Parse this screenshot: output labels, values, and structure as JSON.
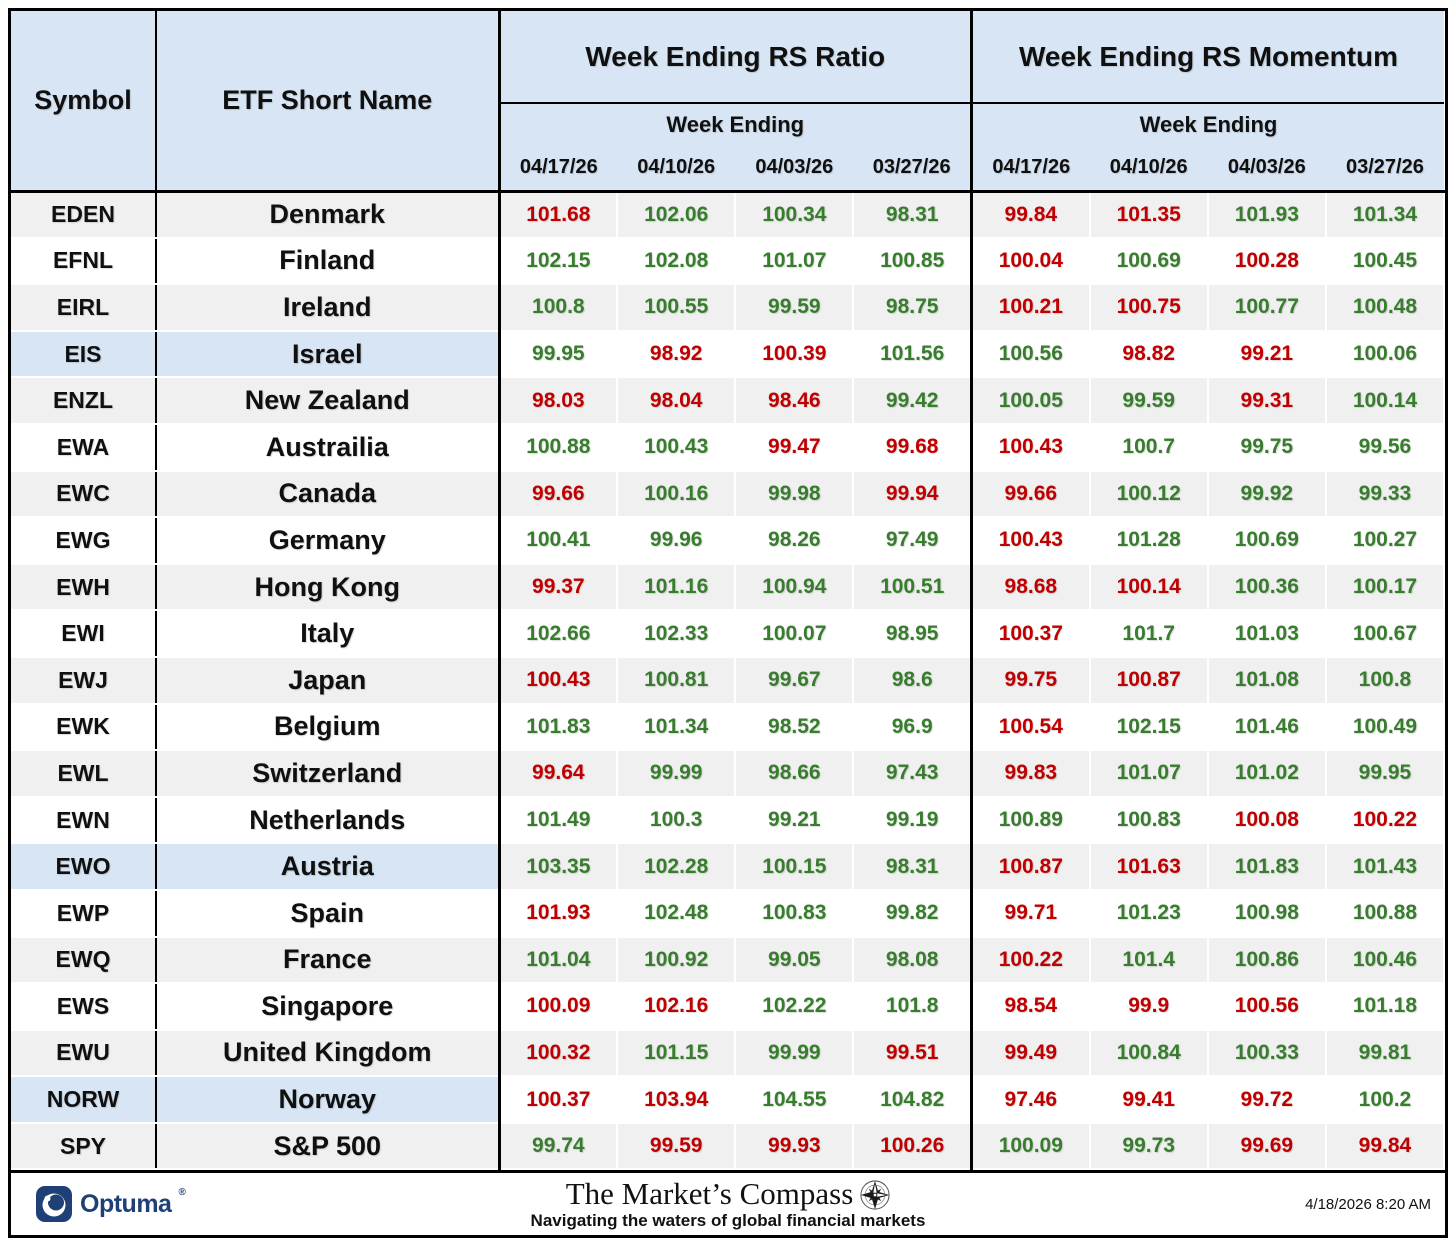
{
  "table": {
    "symbol_header": "Symbol",
    "name_header": "ETF Short Name",
    "ratio_group_header": "Week Ending RS Ratio",
    "momentum_group_header": "Week Ending RS Momentum",
    "week_ending_label": "Week Ending",
    "colors": {
      "positive_green": "#377d2d",
      "negative_red": "#c00000",
      "header_blue": "#d7e5f4",
      "stripe_gray": "#f0f0f0",
      "highlight_blue": "#d7e5f4",
      "brand_navy": "#1e4077"
    }
  },
  "chart_data": {
    "type": "table",
    "title": "Week Ending RS Ratio and RS Momentum by ETF",
    "column_groups": [
      "Week Ending RS Ratio",
      "Week Ending RS Momentum"
    ],
    "date_columns": [
      "04/17/26",
      "04/10/26",
      "04/03/26",
      "03/27/26"
    ],
    "color_legend": {
      "g": "green (improving)",
      "r": "red (weakening)"
    },
    "rows": [
      {
        "symbol": "EDEN",
        "name": "Denmark",
        "highlight": false,
        "rs_ratio": [
          101.68,
          102.06,
          100.34,
          98.31
        ],
        "rs_ratio_colors": [
          "r",
          "g",
          "g",
          "g"
        ],
        "rs_momentum": [
          99.84,
          101.35,
          101.93,
          101.34
        ],
        "rs_momentum_colors": [
          "r",
          "r",
          "g",
          "g"
        ]
      },
      {
        "symbol": "EFNL",
        "name": "Finland",
        "highlight": false,
        "rs_ratio": [
          102.15,
          102.08,
          101.07,
          100.85
        ],
        "rs_ratio_colors": [
          "g",
          "g",
          "g",
          "g"
        ],
        "rs_momentum": [
          100.04,
          100.69,
          100.28,
          100.45
        ],
        "rs_momentum_colors": [
          "r",
          "g",
          "r",
          "g"
        ]
      },
      {
        "symbol": "EIRL",
        "name": "Ireland",
        "highlight": false,
        "rs_ratio": [
          100.8,
          100.55,
          99.59,
          98.75
        ],
        "rs_ratio_colors": [
          "g",
          "g",
          "g",
          "g"
        ],
        "rs_momentum": [
          100.21,
          100.75,
          100.77,
          100.48
        ],
        "rs_momentum_colors": [
          "r",
          "r",
          "g",
          "g"
        ]
      },
      {
        "symbol": "EIS",
        "name": "Israel",
        "highlight": true,
        "rs_ratio": [
          99.95,
          98.92,
          100.39,
          101.56
        ],
        "rs_ratio_colors": [
          "g",
          "r",
          "r",
          "g"
        ],
        "rs_momentum": [
          100.56,
          98.82,
          99.21,
          100.06
        ],
        "rs_momentum_colors": [
          "g",
          "r",
          "r",
          "g"
        ]
      },
      {
        "symbol": "ENZL",
        "name": "New Zealand",
        "highlight": false,
        "rs_ratio": [
          98.03,
          98.04,
          98.46,
          99.42
        ],
        "rs_ratio_colors": [
          "r",
          "r",
          "r",
          "g"
        ],
        "rs_momentum": [
          100.05,
          99.59,
          99.31,
          100.14
        ],
        "rs_momentum_colors": [
          "g",
          "g",
          "r",
          "g"
        ]
      },
      {
        "symbol": "EWA",
        "name": "Austrailia",
        "highlight": false,
        "rs_ratio": [
          100.88,
          100.43,
          99.47,
          99.68
        ],
        "rs_ratio_colors": [
          "g",
          "g",
          "r",
          "r"
        ],
        "rs_momentum": [
          100.43,
          100.7,
          99.75,
          99.56
        ],
        "rs_momentum_colors": [
          "r",
          "g",
          "g",
          "g"
        ]
      },
      {
        "symbol": "EWC",
        "name": "Canada",
        "highlight": false,
        "rs_ratio": [
          99.66,
          100.16,
          99.98,
          99.94
        ],
        "rs_ratio_colors": [
          "r",
          "g",
          "g",
          "r"
        ],
        "rs_momentum": [
          99.66,
          100.12,
          99.92,
          99.33
        ],
        "rs_momentum_colors": [
          "r",
          "g",
          "g",
          "g"
        ]
      },
      {
        "symbol": "EWG",
        "name": "Germany",
        "highlight": false,
        "rs_ratio": [
          100.41,
          99.96,
          98.26,
          97.49
        ],
        "rs_ratio_colors": [
          "g",
          "g",
          "g",
          "g"
        ],
        "rs_momentum": [
          100.43,
          101.28,
          100.69,
          100.27
        ],
        "rs_momentum_colors": [
          "r",
          "g",
          "g",
          "g"
        ]
      },
      {
        "symbol": "EWH",
        "name": "Hong Kong",
        "highlight": false,
        "rs_ratio": [
          99.37,
          101.16,
          100.94,
          100.51
        ],
        "rs_ratio_colors": [
          "r",
          "g",
          "g",
          "g"
        ],
        "rs_momentum": [
          98.68,
          100.14,
          100.36,
          100.17
        ],
        "rs_momentum_colors": [
          "r",
          "r",
          "g",
          "g"
        ]
      },
      {
        "symbol": "EWI",
        "name": "Italy",
        "highlight": false,
        "rs_ratio": [
          102.66,
          102.33,
          100.07,
          98.95
        ],
        "rs_ratio_colors": [
          "g",
          "g",
          "g",
          "g"
        ],
        "rs_momentum": [
          100.37,
          101.7,
          101.03,
          100.67
        ],
        "rs_momentum_colors": [
          "r",
          "g",
          "g",
          "g"
        ]
      },
      {
        "symbol": "EWJ",
        "name": "Japan",
        "highlight": false,
        "rs_ratio": [
          100.43,
          100.81,
          99.67,
          98.6
        ],
        "rs_ratio_colors": [
          "r",
          "g",
          "g",
          "g"
        ],
        "rs_momentum": [
          99.75,
          100.87,
          101.08,
          100.8
        ],
        "rs_momentum_colors": [
          "r",
          "r",
          "g",
          "g"
        ]
      },
      {
        "symbol": "EWK",
        "name": "Belgium",
        "highlight": false,
        "rs_ratio": [
          101.83,
          101.34,
          98.52,
          96.9
        ],
        "rs_ratio_colors": [
          "g",
          "g",
          "g",
          "g"
        ],
        "rs_momentum": [
          100.54,
          102.15,
          101.46,
          100.49
        ],
        "rs_momentum_colors": [
          "r",
          "g",
          "g",
          "g"
        ]
      },
      {
        "symbol": "EWL",
        "name": "Switzerland",
        "highlight": false,
        "rs_ratio": [
          99.64,
          99.99,
          98.66,
          97.43
        ],
        "rs_ratio_colors": [
          "r",
          "g",
          "g",
          "g"
        ],
        "rs_momentum": [
          99.83,
          101.07,
          101.02,
          99.95
        ],
        "rs_momentum_colors": [
          "r",
          "g",
          "g",
          "g"
        ]
      },
      {
        "symbol": "EWN",
        "name": "Netherlands",
        "highlight": false,
        "rs_ratio": [
          101.49,
          100.3,
          99.21,
          99.19
        ],
        "rs_ratio_colors": [
          "g",
          "g",
          "g",
          "g"
        ],
        "rs_momentum": [
          100.89,
          100.83,
          100.08,
          100.22
        ],
        "rs_momentum_colors": [
          "g",
          "g",
          "r",
          "r"
        ]
      },
      {
        "symbol": "EWO",
        "name": "Austria",
        "highlight": true,
        "rs_ratio": [
          103.35,
          102.28,
          100.15,
          98.31
        ],
        "rs_ratio_colors": [
          "g",
          "g",
          "g",
          "g"
        ],
        "rs_momentum": [
          100.87,
          101.63,
          101.83,
          101.43
        ],
        "rs_momentum_colors": [
          "r",
          "r",
          "g",
          "g"
        ]
      },
      {
        "symbol": "EWP",
        "name": "Spain",
        "highlight": false,
        "rs_ratio": [
          101.93,
          102.48,
          100.83,
          99.82
        ],
        "rs_ratio_colors": [
          "r",
          "g",
          "g",
          "g"
        ],
        "rs_momentum": [
          99.71,
          101.23,
          100.98,
          100.88
        ],
        "rs_momentum_colors": [
          "r",
          "g",
          "g",
          "g"
        ]
      },
      {
        "symbol": "EWQ",
        "name": "France",
        "highlight": false,
        "rs_ratio": [
          101.04,
          100.92,
          99.05,
          98.08
        ],
        "rs_ratio_colors": [
          "g",
          "g",
          "g",
          "g"
        ],
        "rs_momentum": [
          100.22,
          101.4,
          100.86,
          100.46
        ],
        "rs_momentum_colors": [
          "r",
          "g",
          "g",
          "g"
        ]
      },
      {
        "symbol": "EWS",
        "name": "Singapore",
        "highlight": false,
        "rs_ratio": [
          100.09,
          102.16,
          102.22,
          101.8
        ],
        "rs_ratio_colors": [
          "r",
          "r",
          "g",
          "g"
        ],
        "rs_momentum": [
          98.54,
          99.9,
          100.56,
          101.18
        ],
        "rs_momentum_colors": [
          "r",
          "r",
          "r",
          "g"
        ]
      },
      {
        "symbol": "EWU",
        "name": "United Kingdom",
        "highlight": false,
        "rs_ratio": [
          100.32,
          101.15,
          99.99,
          99.51
        ],
        "rs_ratio_colors": [
          "r",
          "g",
          "g",
          "r"
        ],
        "rs_momentum": [
          99.49,
          100.84,
          100.33,
          99.81
        ],
        "rs_momentum_colors": [
          "r",
          "g",
          "g",
          "g"
        ]
      },
      {
        "symbol": "NORW",
        "name": "Norway",
        "highlight": true,
        "rs_ratio": [
          100.37,
          103.94,
          104.55,
          104.82
        ],
        "rs_ratio_colors": [
          "r",
          "r",
          "g",
          "g"
        ],
        "rs_momentum": [
          97.46,
          99.41,
          99.72,
          100.2
        ],
        "rs_momentum_colors": [
          "r",
          "r",
          "r",
          "g"
        ]
      },
      {
        "symbol": "SPY",
        "name": "S&P 500",
        "highlight": false,
        "rs_ratio": [
          99.74,
          99.59,
          99.93,
          100.26
        ],
        "rs_ratio_colors": [
          "g",
          "r",
          "r",
          "r"
        ],
        "rs_momentum": [
          100.09,
          99.73,
          99.69,
          99.84
        ],
        "rs_momentum_colors": [
          "g",
          "g",
          "r",
          "r"
        ]
      }
    ]
  },
  "footer": {
    "brand": "Optuma",
    "registered_mark": "®",
    "title": "The Market’s Compass",
    "subtitle": "Navigating the waters of global financial markets",
    "timestamp": "4/18/2026 8:20 AM"
  }
}
